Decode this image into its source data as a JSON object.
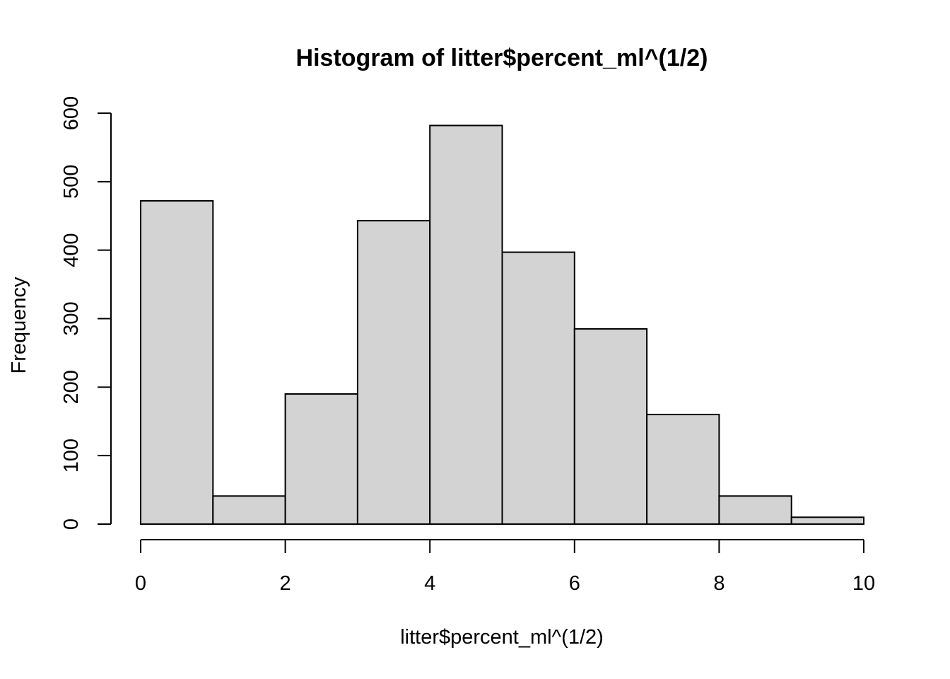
{
  "chart_data": {
    "type": "bar",
    "title": "Histogram of litter$percent_ml^(1/2)",
    "xlabel": "litter$percent_ml^(1/2)",
    "ylabel": "Frequency",
    "bins": [
      {
        "x0": 0,
        "x1": 1,
        "count": 472
      },
      {
        "x0": 1,
        "x1": 2,
        "count": 41
      },
      {
        "x0": 2,
        "x1": 3,
        "count": 190
      },
      {
        "x0": 3,
        "x1": 4,
        "count": 443
      },
      {
        "x0": 4,
        "x1": 5,
        "count": 582
      },
      {
        "x0": 5,
        "x1": 6,
        "count": 397
      },
      {
        "x0": 6,
        "x1": 7,
        "count": 285
      },
      {
        "x0": 7,
        "x1": 8,
        "count": 160
      },
      {
        "x0": 8,
        "x1": 9,
        "count": 41
      },
      {
        "x0": 9,
        "x1": 10,
        "count": 10
      }
    ],
    "xlim": [
      0,
      10
    ],
    "ylim": [
      0,
      600
    ],
    "x_ticks": [
      "0",
      "2",
      "4",
      "6",
      "8",
      "10"
    ],
    "y_ticks": [
      "0",
      "100",
      "200",
      "300",
      "400",
      "500",
      "600"
    ],
    "grid": false,
    "bar_fill": "#d3d3d3",
    "bar_stroke": "#000000"
  }
}
